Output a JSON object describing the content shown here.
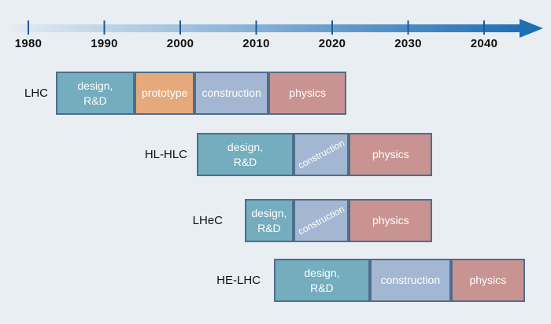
{
  "timeline": {
    "years": [
      "1980",
      "1990",
      "2000",
      "2010",
      "2020",
      "2030",
      "2040"
    ],
    "start_year": 1980,
    "end_year": 2040
  },
  "projects": [
    {
      "name": "LHC",
      "phases": [
        {
          "type": "design",
          "label": "design,\nR&D",
          "start": 1983.6,
          "end": 1994.0
        },
        {
          "type": "prototype",
          "label": "prototype",
          "start": 1994.0,
          "end": 2001.9
        },
        {
          "type": "construction",
          "label": "construction",
          "start": 2001.9,
          "end": 2011.6
        },
        {
          "type": "physics",
          "label": "physics",
          "start": 2011.6,
          "end": 2021.9
        }
      ]
    },
    {
      "name": "HL-HLC",
      "phases": [
        {
          "type": "design",
          "label": "design,\nR&D",
          "start": 2002.2,
          "end": 2014.9
        },
        {
          "type": "construction",
          "label": "construction",
          "start": 2014.9,
          "end": 2022.2,
          "rotated": true
        },
        {
          "type": "physics",
          "label": "physics",
          "start": 2022.2,
          "end": 2033.2
        }
      ]
    },
    {
      "name": "LHeC",
      "phases": [
        {
          "type": "design",
          "label": "design,\nR&D",
          "start": 2008.5,
          "end": 2014.9
        },
        {
          "type": "construction",
          "label": "construction",
          "start": 2014.9,
          "end": 2022.2,
          "rotated": true
        },
        {
          "type": "physics",
          "label": "physics",
          "start": 2022.2,
          "end": 2033.2
        }
      ]
    },
    {
      "name": "HE-LHC",
      "phases": [
        {
          "type": "design",
          "label": "design,\nR&D",
          "start": 2012.3,
          "end": 2025.0
        },
        {
          "type": "construction",
          "label": "construction",
          "start": 2025.0,
          "end": 2035.6
        },
        {
          "type": "physics",
          "label": "physics",
          "start": 2035.6,
          "end": 2045.4
        }
      ]
    }
  ],
  "colors": {
    "design": "#73adbe",
    "prototype": "#e5a97c",
    "construction": "#a3b7d2",
    "physics": "#c99392",
    "arrow": "#1f6fb5"
  }
}
